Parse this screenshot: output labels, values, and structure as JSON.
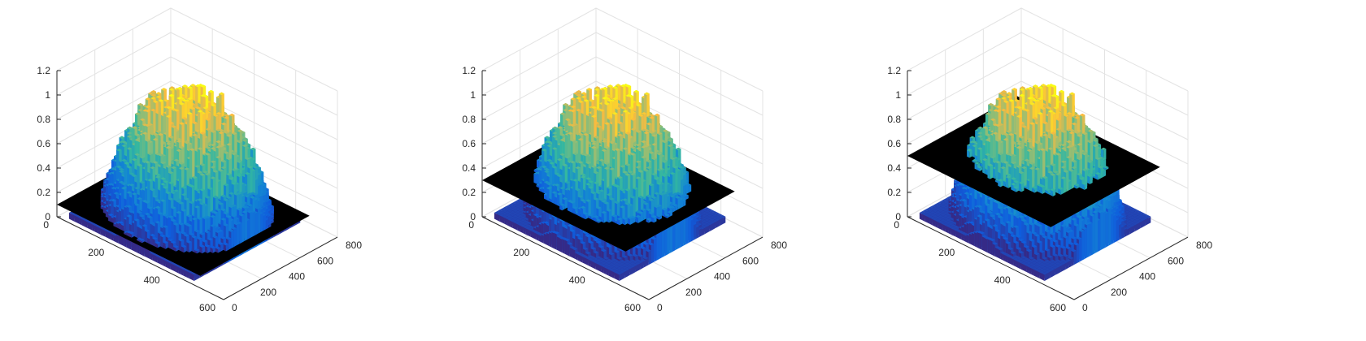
{
  "chart_data": [
    {
      "type": "surface",
      "x_ticks": [
        "0",
        "200",
        "400",
        "600",
        "800"
      ],
      "y_ticks": [
        "0",
        "200",
        "400",
        "600"
      ],
      "z_ticks": [
        "0",
        "0.2",
        "0.4",
        "0.6",
        "0.8",
        "1",
        "1.2"
      ],
      "xlim": [
        0,
        800
      ],
      "ylim": [
        0,
        600
      ],
      "zlim": [
        0,
        1.2
      ],
      "threshold_plane_z": 0.1,
      "surface_peak": 1.1,
      "colormap": "parula",
      "plane_color": "#000000",
      "grid": true
    },
    {
      "type": "surface",
      "x_ticks": [
        "0",
        "200",
        "400",
        "600",
        "800"
      ],
      "y_ticks": [
        "0",
        "200",
        "400",
        "600"
      ],
      "z_ticks": [
        "0",
        "0.2",
        "0.4",
        "0.6",
        "0.8",
        "1",
        "1.2"
      ],
      "xlim": [
        0,
        800
      ],
      "ylim": [
        0,
        600
      ],
      "zlim": [
        0,
        1.2
      ],
      "threshold_plane_z": 0.3,
      "surface_peak": 1.1,
      "colormap": "parula",
      "plane_color": "#000000",
      "grid": true
    },
    {
      "type": "surface",
      "x_ticks": [
        "0",
        "200",
        "400",
        "600",
        "800"
      ],
      "y_ticks": [
        "0",
        "200",
        "400",
        "600"
      ],
      "z_ticks": [
        "0",
        "0.2",
        "0.4",
        "0.6",
        "0.8",
        "1",
        "1.2"
      ],
      "xlim": [
        0,
        800
      ],
      "ylim": [
        0,
        600
      ],
      "zlim": [
        0,
        1.2
      ],
      "threshold_plane_z": 0.5,
      "surface_peak": 1.1,
      "colormap": "parula",
      "plane_color": "#000000",
      "grid": true
    }
  ]
}
